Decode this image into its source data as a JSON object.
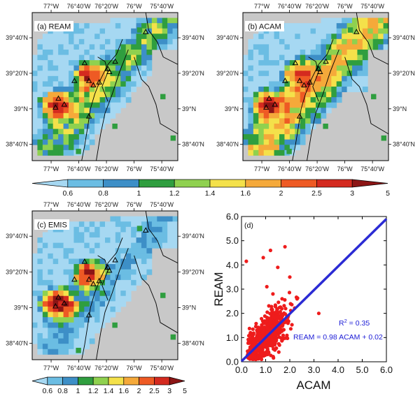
{
  "colors": {
    "land": "#c8c8c8",
    "palette": [
      "#a6d8f2",
      "#6bbde3",
      "#3d8fc7",
      "#2f9e3f",
      "#8fd14f",
      "#f4e14a",
      "#f5a93a",
      "#ee5a24",
      "#d42a1f",
      "#8c1515"
    ],
    "scatter_points": "#ee1c1c",
    "fit_line": "#2b2bd4",
    "annotation": "#1b1bd6"
  },
  "map_axes": {
    "lon_labels": [
      "77°W",
      "76°40'W",
      "76°20'W",
      "76°W",
      "75°40'W"
    ],
    "lat_labels": [
      "39°40'N",
      "39°20'N",
      "39°N",
      "38°40'N"
    ]
  },
  "colorbar_labels": [
    "0.6",
    "0.8",
    "1",
    "1.2",
    "1.4",
    "1.6",
    "2",
    "2.5",
    "3",
    "5"
  ],
  "map_panels": [
    {
      "id": "a",
      "label": "(a) REAM"
    },
    {
      "id": "b",
      "label": "(b) ACAM"
    },
    {
      "id": "c",
      "label": "(c) EMIS"
    }
  ],
  "chart_data": {
    "type": "scatter",
    "panel_label": "(d)",
    "xlabel": "ACAM",
    "ylabel": "REAM",
    "xlim": [
      0,
      6
    ],
    "ylim": [
      0,
      6
    ],
    "xticks": [
      "0.0",
      "1.0",
      "2.0",
      "3.0",
      "4.0",
      "5.0",
      "6.0"
    ],
    "yticks": [
      "0.0",
      "1.0",
      "2.0",
      "3.0",
      "4.0",
      "5.0",
      "6.0"
    ],
    "r2_prefix": "R",
    "r2_sup": "2",
    "r2_suffix": " = 0.35",
    "fit_equation": "REAM = 0.98 ACAM + 0.02",
    "fit": {
      "slope": 0.98,
      "intercept": 0.02
    },
    "points_note_x": [
      0.2,
      1.8,
      3.2,
      1.2,
      0.9,
      1.5,
      2.0,
      2.3,
      1.05,
      1.3
    ],
    "points_note_y": [
      4.15,
      4.75,
      2.0,
      4.6,
      4.3,
      3.9,
      3.5,
      2.6,
      3.1,
      2.8
    ]
  }
}
